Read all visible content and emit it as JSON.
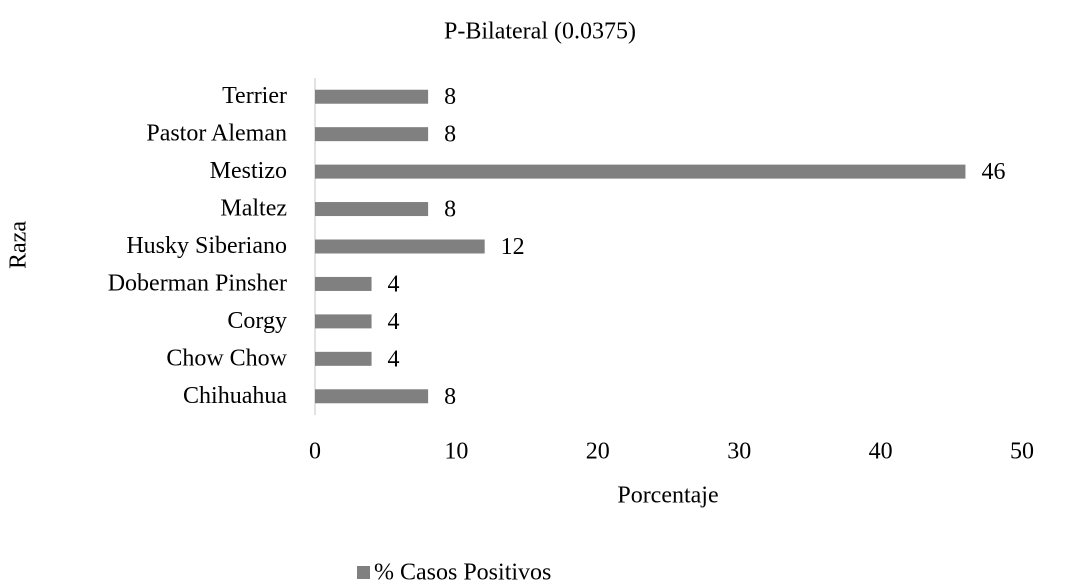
{
  "chart_data": {
    "type": "bar",
    "orientation": "horizontal",
    "title": "P-Bilateral (0.0375)",
    "x_label": "Porcentaje",
    "y_label": "Raza",
    "categories": [
      "Terrier",
      "Pastor Aleman",
      "Mestizo",
      "Maltez",
      "Husky Siberiano",
      "Doberman Pinsher",
      "Corgy",
      "Chow Chow",
      "Chihuahua"
    ],
    "series": [
      {
        "name": "% Casos Positivos",
        "color": "#808080",
        "values": [
          8,
          8,
          46,
          8,
          12,
          4,
          4,
          4,
          8
        ]
      }
    ],
    "xlim": [
      0,
      50
    ],
    "xticks": [
      0,
      10,
      20,
      30,
      40,
      50
    ],
    "grid": false,
    "legend": "bottom"
  }
}
